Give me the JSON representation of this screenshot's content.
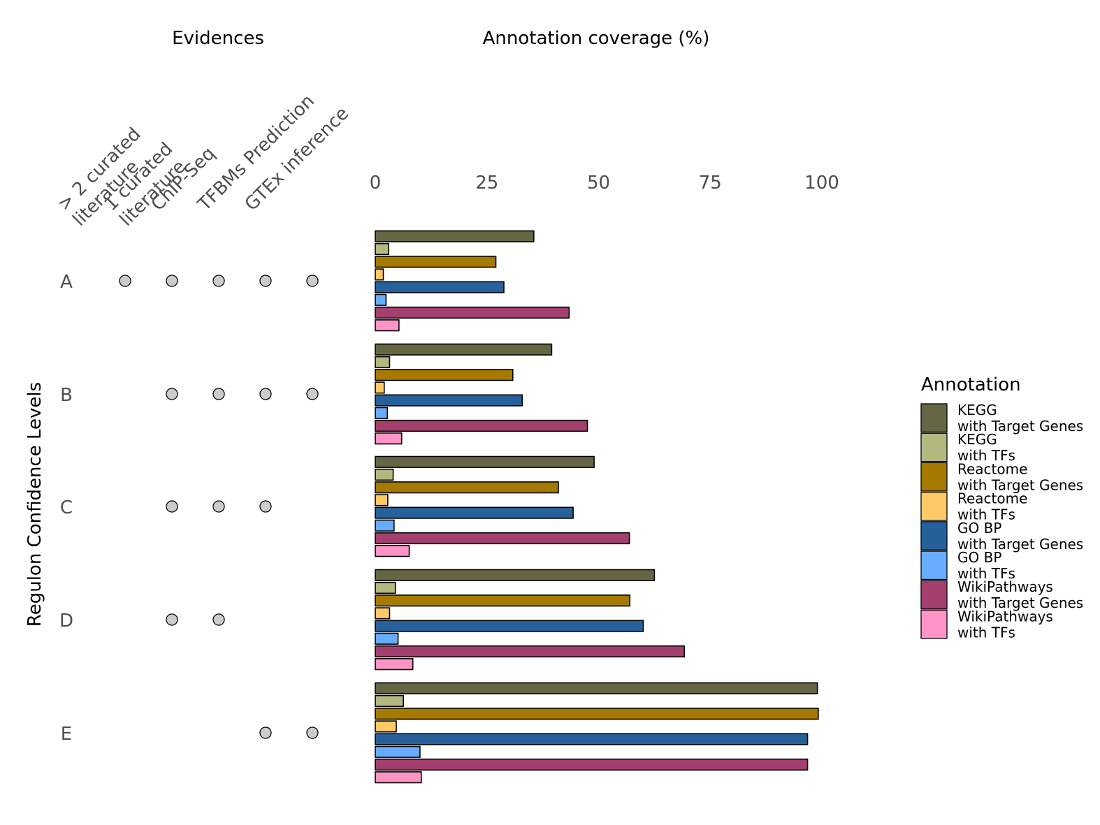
{
  "chart_data": {
    "type": "bar",
    "orientation": "horizontal",
    "x_title": "Annotation coverage (%)",
    "xlim": [
      0,
      100
    ],
    "x_ticks": [
      0,
      25,
      50,
      75,
      100
    ],
    "y_title": "Regulon Confidence Levels",
    "categories": [
      "A",
      "B",
      "C",
      "D",
      "E"
    ],
    "legend_title": "Annotation",
    "legend_position": "right",
    "series": [
      {
        "name": "KEGG\nwith Target Genes",
        "color": "#666645",
        "values": [
          35.5,
          39.5,
          49,
          62.5,
          99
        ]
      },
      {
        "name": "KEGG\nwith TFs",
        "color": "#B3B87F",
        "values": [
          3,
          3.2,
          4,
          4.5,
          6.3
        ]
      },
      {
        "name": "Reactome\nwith Target Genes",
        "color": "#A67A00",
        "values": [
          27,
          30.8,
          41,
          57,
          99.2
        ]
      },
      {
        "name": "Reactome\nwith TFs",
        "color": "#FFC966",
        "values": [
          1.8,
          2,
          2.8,
          3.2,
          4.7
        ]
      },
      {
        "name": "GO BP\nwith Target Genes",
        "color": "#26619C",
        "values": [
          28.8,
          32.9,
          44.3,
          60,
          96.8
        ]
      },
      {
        "name": "GO BP\nwith TFs",
        "color": "#66ADFF",
        "values": [
          2.4,
          2.7,
          4.2,
          5.1,
          10
        ]
      },
      {
        "name": "WikiPathways\nwith Target Genes",
        "color": "#A3406E",
        "values": [
          43.4,
          47.5,
          56.9,
          69.2,
          96.8
        ]
      },
      {
        "name": "WikiPathways\nwith TFs",
        "color": "#FF94C7",
        "values": [
          5.3,
          5.9,
          7.6,
          8.4,
          10.3
        ]
      }
    ]
  },
  "evidence_panel": {
    "title": "Evidences",
    "columns": [
      "> 2 curated\nliterature",
      "1 curated\nliterature",
      "ChIP-Seq",
      "TFBMs Prediction",
      "GTEx inference"
    ],
    "dot_color": "#CCCCCC",
    "matrix": [
      [
        1,
        1,
        1,
        1,
        1
      ],
      [
        0,
        1,
        1,
        1,
        1
      ],
      [
        0,
        1,
        1,
        1,
        0
      ],
      [
        0,
        1,
        1,
        0,
        0
      ],
      [
        0,
        0,
        0,
        1,
        1
      ]
    ]
  }
}
